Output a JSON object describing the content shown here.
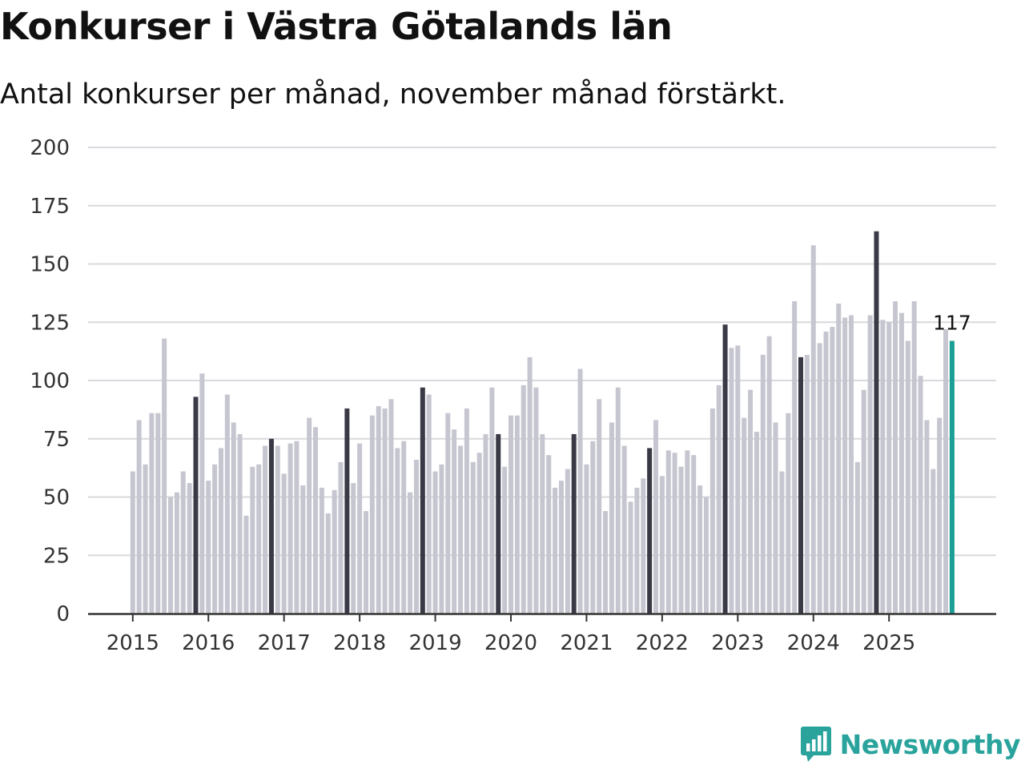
{
  "header": {
    "title": "Konkurser i Västra Götalands län",
    "subtitle": "Antal konkurser per månad, november månad förstärkt."
  },
  "brand": {
    "name": "Newsworthy",
    "icon": "newsworthy-logo-icon"
  },
  "colors": {
    "base_bar": "#c6c6d0",
    "november_bar": "#3a3a47",
    "latest_bar": "#1a9e95",
    "grid": "#d9d9de",
    "axis": "#333333",
    "brand": "#29a39c"
  },
  "chart_data": {
    "type": "bar",
    "title": "Konkurser i Västra Götalands län",
    "subtitle": "Antal konkurser per månad, november månad förstärkt.",
    "xlabel": "",
    "ylabel": "",
    "ylim": [
      0,
      200
    ],
    "yticks": [
      0,
      25,
      50,
      75,
      100,
      125,
      150,
      175,
      200
    ],
    "xtick_labels": [
      "2015",
      "2016",
      "2017",
      "2018",
      "2019",
      "2020",
      "2021",
      "2022",
      "2023",
      "2024",
      "2025"
    ],
    "start": "2015-01",
    "highlight": "november",
    "last_value_label": "117",
    "series": [
      {
        "name": "Antal konkurser",
        "values": [
          61,
          83,
          64,
          86,
          86,
          118,
          50,
          52,
          61,
          56,
          93,
          103,
          57,
          64,
          71,
          94,
          82,
          77,
          42,
          63,
          64,
          72,
          75,
          72,
          60,
          73,
          74,
          55,
          84,
          80,
          54,
          43,
          53,
          65,
          88,
          56,
          73,
          44,
          85,
          89,
          88,
          92,
          71,
          74,
          52,
          66,
          97,
          94,
          61,
          64,
          86,
          79,
          72,
          88,
          65,
          69,
          77,
          97,
          77,
          63,
          85,
          85,
          98,
          110,
          97,
          77,
          68,
          54,
          57,
          62,
          77,
          105,
          64,
          74,
          92,
          44,
          82,
          97,
          72,
          48,
          54,
          58,
          71,
          83,
          59,
          70,
          69,
          63,
          70,
          68,
          55,
          50,
          88,
          98,
          124,
          114,
          115,
          84,
          96,
          78,
          111,
          119,
          82,
          61,
          86,
          134,
          110,
          111,
          158,
          116,
          121,
          123,
          133,
          127,
          128,
          65,
          96,
          128,
          164,
          126,
          125,
          134,
          129,
          117,
          134,
          102,
          83,
          62,
          84,
          122,
          117
        ]
      }
    ]
  }
}
